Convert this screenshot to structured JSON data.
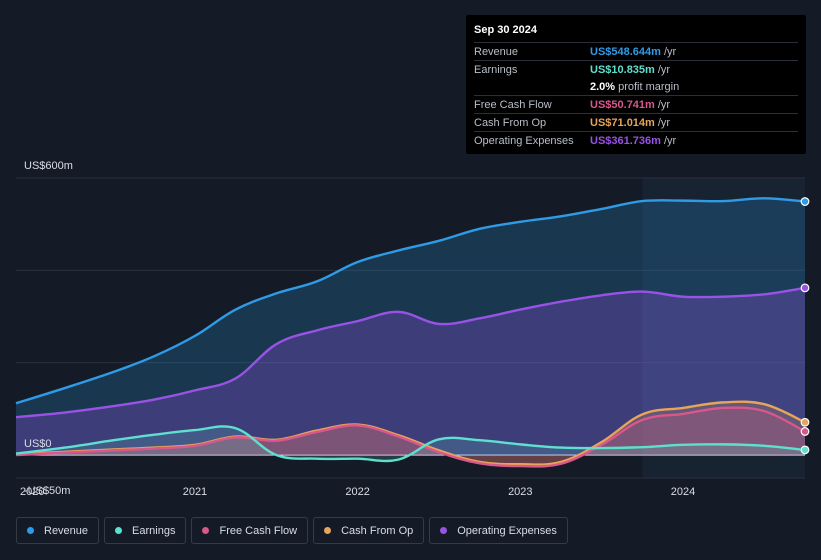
{
  "tooltip": {
    "date": "Sep 30 2024",
    "rows": [
      {
        "label": "Revenue",
        "value": "US$548.644m",
        "unit": "/yr",
        "color": "#2f9be6"
      },
      {
        "label": "Earnings",
        "value": "US$10.835m",
        "unit": "/yr",
        "color": "#5ee0cf"
      },
      {
        "label": "",
        "value": "2.0%",
        "unit": "profit margin",
        "color": "#ffffff"
      },
      {
        "label": "Free Cash Flow",
        "value": "US$50.741m",
        "unit": "/yr",
        "color": "#d9578a"
      },
      {
        "label": "Cash From Op",
        "value": "US$71.014m",
        "unit": "/yr",
        "color": "#e7a45a"
      },
      {
        "label": "Operating Expenses",
        "value": "US$361.736m",
        "unit": "/yr",
        "color": "#9a52e6"
      }
    ]
  },
  "legend": [
    {
      "label": "Revenue",
      "color": "#2f9be6"
    },
    {
      "label": "Earnings",
      "color": "#5ee0cf"
    },
    {
      "label": "Free Cash Flow",
      "color": "#d9578a"
    },
    {
      "label": "Cash From Op",
      "color": "#e7a45a"
    },
    {
      "label": "Operating Expenses",
      "color": "#9a52e6"
    }
  ],
  "chart_data": {
    "type": "area",
    "title": "",
    "ylim": [
      -50,
      600
    ],
    "xlim": [
      2019.9,
      2024.75
    ],
    "y_tick_labels": [
      {
        "value": 600,
        "label": "US$600m"
      },
      {
        "value": 0,
        "label": "US$0"
      },
      {
        "value": -50,
        "label": "-US$50m"
      }
    ],
    "x_ticks": [
      2020,
      2021,
      2022,
      2023,
      2024
    ],
    "x_tick_labels": [
      "2020",
      "2021",
      "2022",
      "2023",
      "2024"
    ],
    "highlight_start": 2023.75,
    "series": [
      {
        "name": "Revenue",
        "color": "#2f9be6",
        "x": [
          2019.9,
          2020.2,
          2020.5,
          2020.75,
          2021.0,
          2021.25,
          2021.5,
          2021.75,
          2022.0,
          2022.25,
          2022.5,
          2022.75,
          2023.0,
          2023.25,
          2023.5,
          2023.75,
          2024.0,
          2024.25,
          2024.5,
          2024.75
        ],
        "values": [
          112,
          145,
          180,
          214,
          258,
          315,
          350,
          376,
          418,
          443,
          464,
          490,
          505,
          517,
          533,
          550,
          551,
          550,
          556,
          549
        ]
      },
      {
        "name": "Operating Expenses",
        "color": "#9a52e6",
        "x": [
          2019.9,
          2020.2,
          2020.5,
          2020.75,
          2021.0,
          2021.25,
          2021.5,
          2021.75,
          2022.0,
          2022.25,
          2022.5,
          2022.75,
          2023.0,
          2023.25,
          2023.5,
          2023.75,
          2024.0,
          2024.25,
          2024.5,
          2024.75
        ],
        "values": [
          82,
          92,
          106,
          120,
          140,
          166,
          240,
          270,
          290,
          310,
          284,
          296,
          315,
          332,
          346,
          354,
          343,
          343,
          348,
          362
        ]
      },
      {
        "name": "Cash From Op",
        "color": "#e7a45a",
        "x": [
          2019.9,
          2020.2,
          2020.5,
          2020.75,
          2021.0,
          2021.25,
          2021.5,
          2021.75,
          2022.0,
          2022.25,
          2022.5,
          2022.75,
          2023.0,
          2023.25,
          2023.5,
          2023.75,
          2024.0,
          2024.25,
          2024.5,
          2024.75
        ],
        "values": [
          2,
          7,
          12,
          16,
          22,
          40,
          33,
          53,
          66,
          43,
          10,
          -15,
          -20,
          -15,
          28,
          88,
          102,
          114,
          110,
          71
        ]
      },
      {
        "name": "Free Cash Flow",
        "color": "#d9578a",
        "x": [
          2019.9,
          2020.2,
          2020.5,
          2020.75,
          2021.0,
          2021.25,
          2021.5,
          2021.75,
          2022.0,
          2022.25,
          2022.5,
          2022.75,
          2023.0,
          2023.25,
          2023.5,
          2023.75,
          2024.0,
          2024.25,
          2024.5,
          2024.75
        ],
        "values": [
          0,
          5,
          10,
          14,
          20,
          38,
          31,
          50,
          64,
          40,
          6,
          -18,
          -24,
          -19,
          22,
          76,
          89,
          102,
          95,
          51
        ]
      },
      {
        "name": "Earnings",
        "color": "#5ee0cf",
        "x": [
          2019.9,
          2020.2,
          2020.5,
          2020.75,
          2021.0,
          2021.25,
          2021.5,
          2021.75,
          2022.0,
          2022.25,
          2022.5,
          2022.75,
          2023.0,
          2023.25,
          2023.5,
          2023.75,
          2024.0,
          2024.25,
          2024.5,
          2024.75
        ],
        "values": [
          3,
          16,
          32,
          44,
          54,
          58,
          0,
          -8,
          -8,
          -10,
          34,
          32,
          23,
          16,
          15,
          17,
          22,
          23,
          20,
          11
        ]
      }
    ]
  }
}
